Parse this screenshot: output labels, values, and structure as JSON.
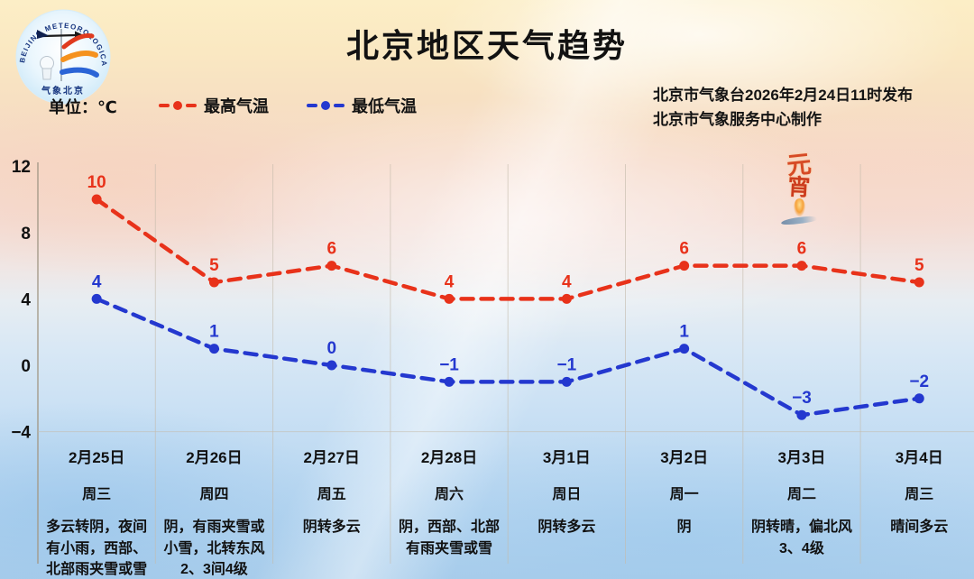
{
  "header": {
    "title": "北京地区天气趋势",
    "issued_line1": "北京市气象台2026年2月24日11时发布",
    "issued_line2": "北京市气象服务中心制作"
  },
  "legend": {
    "unit": "单位：℃",
    "max_label": "最高气温",
    "min_label": "最低气温"
  },
  "logo": {
    "arc_text": "BEIJING METEOROLOGICAL SERVICE",
    "bottom_text": "气象北京"
  },
  "decor": {
    "festival_char1": "元",
    "festival_char2": "宵"
  },
  "colors": {
    "max_line": "#e8321a",
    "min_line": "#2438cf",
    "grid": "#c4bbab",
    "axis": "#a39988",
    "text": "#111111"
  },
  "chart_data": {
    "type": "line",
    "title": "北京地区天气趋势",
    "ylabel": "℃",
    "ylim": [
      -4,
      12
    ],
    "yticks": [
      12,
      8,
      4,
      0,
      -4
    ],
    "grid": "vertical",
    "legend_position": "top-left",
    "categories": [
      "2月25日",
      "2月26日",
      "2月27日",
      "2月28日",
      "3月1日",
      "3月2日",
      "3月3日",
      "3月4日"
    ],
    "weekdays": [
      "周三",
      "周四",
      "周五",
      "周六",
      "周日",
      "周一",
      "周二",
      "周三"
    ],
    "series": [
      {
        "name": "最高气温",
        "color": "#e8321a",
        "values": [
          10,
          5,
          6,
          4,
          4,
          6,
          6,
          5
        ]
      },
      {
        "name": "最低气温",
        "color": "#2438cf",
        "values": [
          4,
          1,
          0,
          -1,
          -1,
          1,
          -3,
          -2
        ]
      }
    ],
    "forecasts": [
      "多云转阴，夜间\n有小雨，西部、\n北部雨夹雪或雪",
      "阴，有雨夹雪或\n小雪，北转东风\n2、3间4级",
      "阴转多云",
      "阴，西部、北部\n有雨夹雪或雪",
      "阴转多云",
      "阴",
      "阴转晴，偏北风\n3、4级",
      "晴间多云"
    ]
  }
}
